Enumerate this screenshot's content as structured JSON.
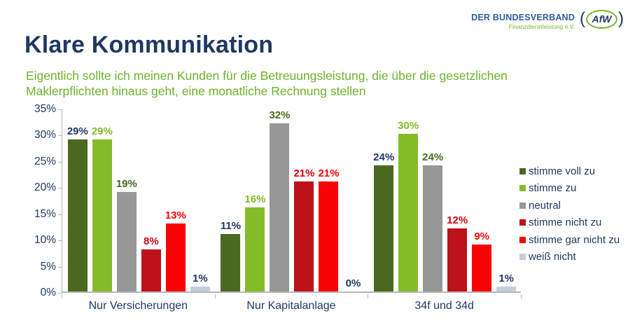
{
  "header": {
    "logo": {
      "line1": "DER BUNDESVERBAND",
      "line2": "Finanzdienstleistung e.V.",
      "paren_open": "(",
      "badge_text": "AfW",
      "paren_close": ")"
    },
    "title": "Klare Kommunikation",
    "subtitle": "Eigentlich sollte ich meinen Kunden für die Betreuungsleistung, die über die gesetzlichen\nMaklerpflichten hinaus geht, eine monatliche Rechnung stellen"
  },
  "colors": {
    "title_text": "#1f3864",
    "subtitle_text": "#6cb32b",
    "axis_line": "#b7b7b7",
    "axis_text": "#1f3864",
    "logo_blue": "#2d5f9b",
    "logo_green": "#76b82a"
  },
  "chart_data": {
    "type": "bar",
    "title": "",
    "xlabel": "",
    "ylabel": "",
    "categories": [
      "Nur Versicherungen",
      "Nur Kapitalanlage",
      "34f und 34d"
    ],
    "series": [
      {
        "name": "stimme voll zu",
        "color": "#4a681f",
        "label_color": "#1f3864",
        "values": [
          29,
          11,
          24
        ]
      },
      {
        "name": "stimme zu",
        "color": "#84bb29",
        "label_color": "#84bb29",
        "values": [
          29,
          16,
          30
        ]
      },
      {
        "name": "neutral",
        "color": "#979797",
        "label_color": "#4a681f",
        "values": [
          19,
          32,
          24
        ]
      },
      {
        "name": "stimme nicht zu",
        "color": "#bd1219",
        "label_color": "#d6000c",
        "values": [
          8,
          21,
          12
        ]
      },
      {
        "name": "stimme gar nicht zu",
        "color": "#f90205",
        "label_color": "#f90205",
        "values": [
          13,
          21,
          9
        ]
      },
      {
        "name": "weiß nicht",
        "color": "#c5cfd9",
        "label_color": "#1f3864",
        "values": [
          1,
          0,
          1
        ]
      }
    ],
    "value_suffix": "%",
    "y_axis": {
      "tick_labels": [
        "35%",
        "30%",
        "25%",
        "20%",
        "15%",
        "10%",
        "5%",
        "0%"
      ],
      "min": 0,
      "max": 35,
      "step": 5
    },
    "grid": false,
    "legend_position": "right"
  }
}
